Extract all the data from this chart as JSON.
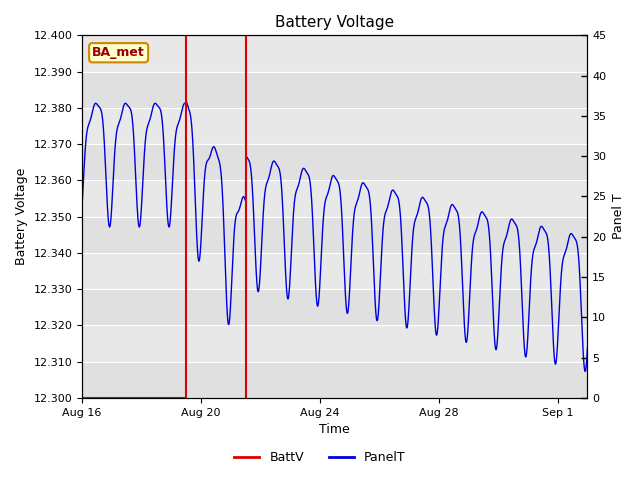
{
  "title": "Battery Voltage",
  "xlabel": "Time",
  "ylabel_left": "Battery Voltage",
  "ylabel_right": "Panel T",
  "ylim_left": [
    12.3,
    12.4
  ],
  "ylim_right": [
    0,
    45
  ],
  "yticks_left": [
    12.3,
    12.31,
    12.32,
    12.33,
    12.34,
    12.35,
    12.36,
    12.37,
    12.38,
    12.39,
    12.4
  ],
  "yticks_right": [
    0,
    5,
    10,
    15,
    20,
    25,
    30,
    35,
    40,
    45
  ],
  "xtick_labels": [
    "Aug 16",
    "Aug 20",
    "Aug 24",
    "Aug 28",
    "Sep 1"
  ],
  "xtick_positions": [
    0,
    4,
    8,
    12,
    16
  ],
  "red_vline1_x": 3.5,
  "red_vline2_x": 5.5,
  "fig_bg_color": "#ffffff",
  "plot_bg_color": "#e8e8e8",
  "blue_line_color": "#0000dd",
  "red_line_color": "#dd0000",
  "label_box_text": "BA_met",
  "label_box_bg": "#ffffcc",
  "label_box_border": "#cc8800",
  "legend_battv_color": "#dd0000",
  "legend_panelt_color": "#0000dd",
  "grid_color": "#ffffff",
  "title_fontsize": 11,
  "axis_fontsize": 9,
  "tick_fontsize": 8
}
